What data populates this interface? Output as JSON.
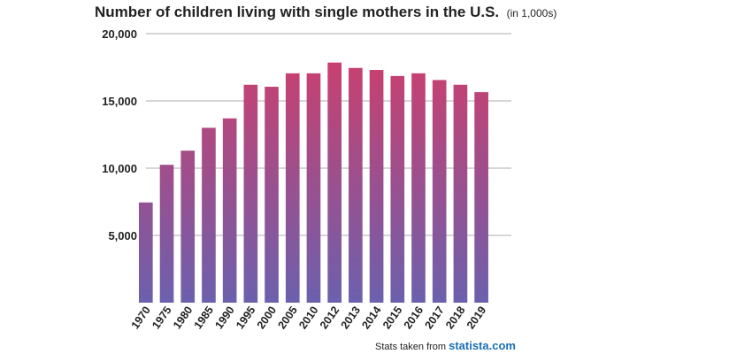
{
  "chart_data": {
    "type": "bar",
    "title": "Number of children living with single mothers in the U.S.",
    "unit_note": "(in 1,000s)",
    "categories": [
      "1970",
      "1975",
      "1980",
      "1985",
      "1990",
      "1995",
      "2000",
      "2005",
      "2010",
      "2012",
      "2013",
      "2014",
      "2015",
      "2016",
      "2017",
      "2018",
      "2019"
    ],
    "values": [
      7450,
      10250,
      11300,
      13000,
      13700,
      16200,
      16050,
      17050,
      17050,
      17850,
      17450,
      17300,
      16850,
      17050,
      16550,
      16200,
      15650
    ],
    "ylim": [
      0,
      20000
    ],
    "yticks": [
      5000,
      10000,
      15000,
      20000
    ],
    "ytick_labels": [
      "5,000",
      "10,000",
      "15,000",
      "20,000"
    ],
    "grid": true,
    "colors": {
      "low": "#6c60ad",
      "high": "#d43c68",
      "grid": "#c8c8c8"
    }
  },
  "source": {
    "prefix": "Stats taken from",
    "brand": "statista.com"
  }
}
